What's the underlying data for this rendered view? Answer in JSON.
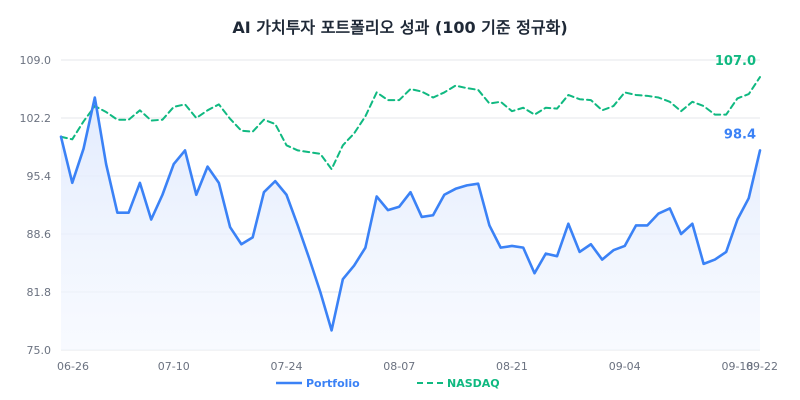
{
  "chart_data": {
    "type": "line",
    "title": "AI 가치투자 포트폴리오 성과 (100 기준 정규화)",
    "xlabel": "",
    "ylabel": "",
    "ylim": [
      75.0,
      109.0
    ],
    "yticks": [
      "75.0",
      "81.8",
      "88.6",
      "95.4",
      "102.2",
      "109.0"
    ],
    "yticks_values": [
      75.0,
      81.8,
      88.6,
      95.4,
      102.2,
      109.0
    ],
    "xticks": [
      {
        "label": "06-26",
        "index": 0
      },
      {
        "label": "07-10",
        "index": 10
      },
      {
        "label": "07-24",
        "index": 20
      },
      {
        "label": "08-07",
        "index": 30
      },
      {
        "label": "08-21",
        "index": 40
      },
      {
        "label": "09-04",
        "index": 50
      },
      {
        "label": "09-18",
        "index": 60
      },
      {
        "label": "09-22",
        "index": 62
      }
    ],
    "grid": true,
    "legend_position": "bottom",
    "colors": {
      "portfolio": "#3b82f6",
      "nasdaq": "#10b981",
      "grid": "#e5e7eb",
      "area": "#eef4ff"
    },
    "series": [
      {
        "name": "Portfolio",
        "style": "solid",
        "end_label": "98.4",
        "values": [
          100.0,
          94.6,
          98.6,
          104.6,
          96.8,
          91.1,
          91.1,
          94.6,
          90.3,
          93.2,
          96.8,
          98.4,
          93.2,
          96.5,
          94.6,
          89.4,
          87.4,
          88.2,
          93.5,
          94.8,
          93.2,
          89.6,
          85.8,
          81.8,
          77.3,
          83.3,
          84.9,
          87.0,
          93.0,
          91.4,
          91.8,
          93.5,
          90.6,
          90.8,
          93.2,
          93.9,
          94.3,
          94.5,
          89.6,
          87.0,
          87.2,
          87.0,
          84.0,
          86.3,
          86.0,
          89.8,
          86.5,
          87.4,
          85.6,
          86.7,
          87.2,
          89.6,
          89.6,
          91.0,
          91.6,
          88.6,
          89.8,
          85.1,
          85.6,
          86.5,
          90.3,
          92.8,
          98.4
        ]
      },
      {
        "name": "NASDAQ",
        "style": "dashed",
        "end_label": "107.0",
        "values": [
          100.0,
          99.7,
          101.8,
          103.6,
          102.9,
          102.0,
          102.0,
          103.1,
          101.9,
          102.0,
          103.5,
          103.8,
          102.2,
          103.1,
          103.8,
          102.1,
          100.7,
          100.6,
          102.0,
          101.5,
          99.0,
          98.4,
          98.2,
          98.0,
          96.2,
          99.0,
          100.4,
          102.4,
          105.2,
          104.3,
          104.3,
          105.6,
          105.3,
          104.6,
          105.2,
          106.0,
          105.7,
          105.5,
          103.9,
          104.1,
          103.0,
          103.4,
          102.6,
          103.4,
          103.3,
          104.9,
          104.4,
          104.3,
          103.1,
          103.6,
          105.2,
          104.9,
          104.8,
          104.6,
          104.1,
          103.0,
          104.1,
          103.6,
          102.6,
          102.6,
          104.5,
          105.0,
          107.0
        ]
      }
    ]
  }
}
